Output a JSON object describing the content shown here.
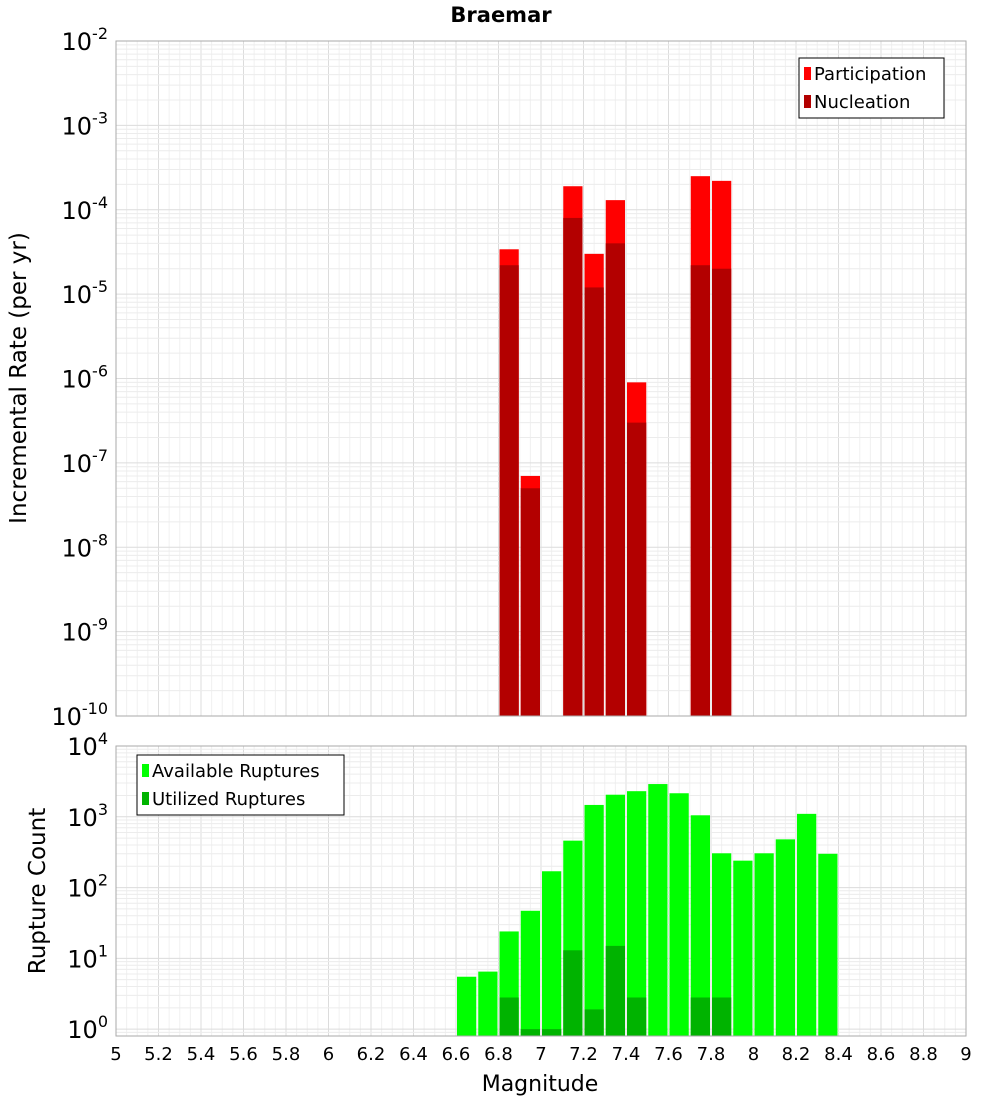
{
  "chart_data": [
    {
      "type": "bar",
      "title": "Braemar",
      "xlabel": "",
      "ylabel": "Incremental Rate (per yr)",
      "yscale": "log",
      "ylim": [
        1e-10,
        0.01
      ],
      "xlim": [
        5,
        9
      ],
      "grid": true,
      "legend_position": "top-right",
      "y_ticks": [
        {
          "base": "10",
          "exp": "-10"
        },
        {
          "base": "10",
          "exp": "-9"
        },
        {
          "base": "10",
          "exp": "-8"
        },
        {
          "base": "10",
          "exp": "-7"
        },
        {
          "base": "10",
          "exp": "-6"
        },
        {
          "base": "10",
          "exp": "-5"
        },
        {
          "base": "10",
          "exp": "-4"
        },
        {
          "base": "10",
          "exp": "-3"
        },
        {
          "base": "10",
          "exp": "-2"
        }
      ],
      "series": [
        {
          "name": "Participation",
          "color": "#ff0000",
          "x": [
            6.85,
            6.95,
            7.15,
            7.25,
            7.35,
            7.45,
            7.75,
            7.85
          ],
          "values": [
            3.4e-05,
            7e-08,
            0.00019,
            3e-05,
            0.00013,
            9e-07,
            0.00025,
            0.00022
          ]
        },
        {
          "name": "Nucleation",
          "color": "#b30000",
          "x": [
            6.85,
            6.95,
            7.15,
            7.25,
            7.35,
            7.45,
            7.75,
            7.85
          ],
          "values": [
            2.2e-05,
            5e-08,
            8e-05,
            1.2e-05,
            4e-05,
            3e-07,
            2.2e-05,
            2e-05
          ]
        }
      ]
    },
    {
      "type": "bar",
      "xlabel": "Magnitude",
      "ylabel": "Rupture Count",
      "yscale": "log",
      "ylim": [
        0.8,
        10000
      ],
      "xlim": [
        5,
        9
      ],
      "grid": true,
      "legend_position": "top-left",
      "x_ticks": [
        "5",
        "5.2",
        "5.4",
        "5.6",
        "5.8",
        "6",
        "6.2",
        "6.4",
        "6.6",
        "6.8",
        "7",
        "7.2",
        "7.4",
        "7.6",
        "7.8",
        "8",
        "8.2",
        "8.4",
        "8.6",
        "8.8",
        "9"
      ],
      "y_ticks": [
        {
          "base": "10",
          "exp": "0"
        },
        {
          "base": "10",
          "exp": "1"
        },
        {
          "base": "10",
          "exp": "2"
        },
        {
          "base": "10",
          "exp": "3"
        },
        {
          "base": "10",
          "exp": "4"
        }
      ],
      "series": [
        {
          "name": "Available Ruptures",
          "color": "#00ff00",
          "x": [
            6.65,
            6.75,
            6.85,
            6.95,
            7.05,
            7.15,
            7.25,
            7.35,
            7.45,
            7.55,
            7.65,
            7.75,
            7.85,
            7.95,
            8.05,
            8.15,
            8.25,
            8.35
          ],
          "values": [
            5.5,
            6.5,
            24,
            47,
            170,
            460,
            1470,
            2050,
            2300,
            2900,
            2150,
            1050,
            305,
            240,
            305,
            480,
            1100,
            300
          ]
        },
        {
          "name": "Utilized Ruptures",
          "color": "#00b300",
          "x": [
            6.85,
            6.95,
            7.05,
            7.15,
            7.25,
            7.35,
            7.45,
            7.75,
            7.85
          ],
          "values": [
            2.8,
            1.0,
            1.0,
            13,
            1.9,
            15,
            2.8,
            2.8,
            2.8
          ]
        }
      ]
    }
  ]
}
